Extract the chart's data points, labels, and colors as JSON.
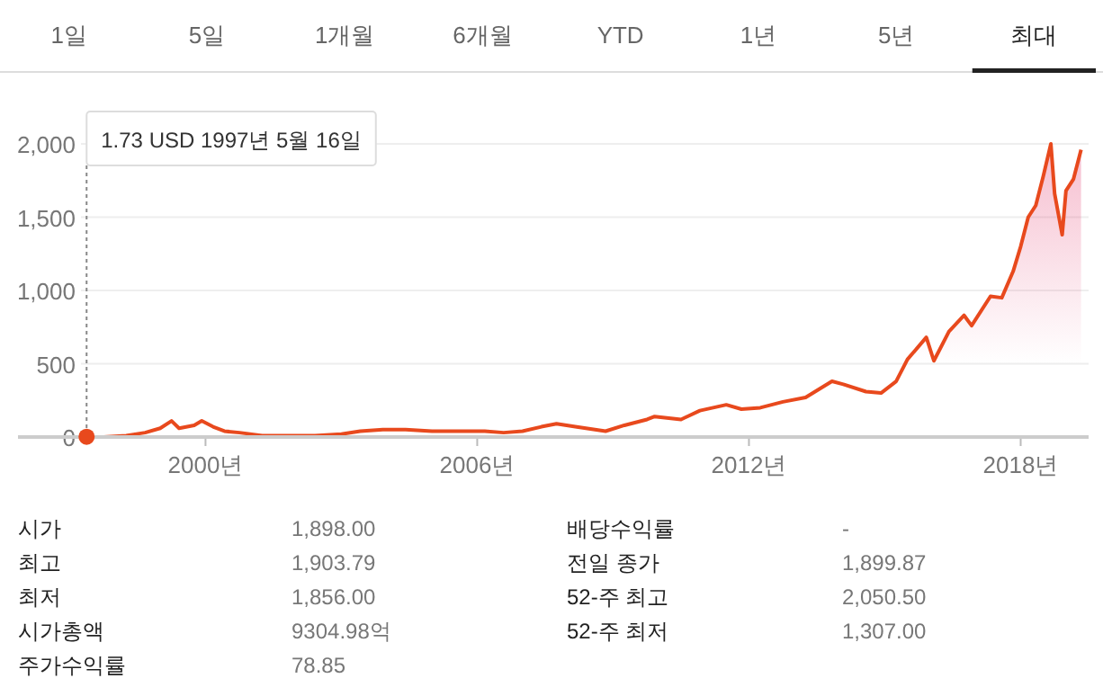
{
  "chart_data": [
    {
      "type": "other",
      "annotations": [
        "1일",
        "5일",
        "1개월",
        "6개월",
        "YTD",
        "1년",
        "5년",
        "최대"
      ]
    },
    {
      "type": "area",
      "xlim": [
        "1997-04",
        "2019-07"
      ],
      "ylim": [
        0,
        2000
      ],
      "xticks": [
        {
          "value": "2000-01",
          "label": "2000년"
        },
        {
          "value": "2006-01",
          "label": "2006년"
        },
        {
          "value": "2012-01",
          "label": "2012년"
        },
        {
          "value": "2018-01",
          "label": "2018년"
        }
      ],
      "yticks": [
        0,
        500,
        {
          "value": 1000,
          "label": "1,000"
        },
        {
          "value": 1500,
          "label": "1,500"
        },
        {
          "value": 2000,
          "label": "2,000"
        }
      ],
      "grid": "y",
      "series": [
        {
          "color": "#e8491d",
          "x": [
            "1997-05",
            "1997-10",
            "1998-04",
            "1998-09",
            "1999-01",
            "1999-04",
            "1999-06",
            "1999-10",
            "1999-12",
            "2000-03",
            "2000-06",
            "2000-10",
            "2001-04",
            "2001-09",
            "2002-06",
            "2003-01",
            "2003-06",
            "2003-12",
            "2004-06",
            "2005-01",
            "2005-08",
            "2006-03",
            "2006-08",
            "2007-01",
            "2007-06",
            "2007-10",
            "2008-03",
            "2008-11",
            "2009-04",
            "2009-10",
            "2009-12",
            "2010-07",
            "2010-12",
            "2011-07",
            "2011-11",
            "2012-04",
            "2012-10",
            "2013-04",
            "2013-11",
            "2014-02",
            "2014-08",
            "2014-12",
            "2015-04",
            "2015-07",
            "2015-12",
            "2016-02",
            "2016-06",
            "2016-10",
            "2016-12",
            "2017-05",
            "2017-08",
            "2017-11",
            "2018-01",
            "2018-03",
            "2018-05",
            "2018-07",
            "2018-09",
            "2018-10",
            "2018-12",
            "2019-01",
            "2019-03",
            "2019-05"
          ],
          "values": [
            0,
            0,
            10,
            30,
            60,
            110,
            60,
            80,
            110,
            70,
            40,
            30,
            10,
            10,
            10,
            20,
            40,
            50,
            50,
            40,
            40,
            40,
            30,
            40,
            70,
            90,
            70,
            40,
            80,
            120,
            140,
            120,
            180,
            220,
            190,
            200,
            240,
            270,
            380,
            360,
            310,
            300,
            380,
            530,
            680,
            520,
            720,
            830,
            760,
            960,
            950,
            1130,
            1300,
            1500,
            1580,
            1780,
            2000,
            1660,
            1380,
            1680,
            1760,
            1960
          ]
        }
      ],
      "annotations": [
        {
          "text": "1.73 USD  1997년 5월 16일",
          "x": "1997-05-16",
          "y": 1.73
        }
      ]
    },
    {
      "type": "other",
      "annotations": [
        "시가",
        "1,898.00",
        "배당수익률",
        "-",
        "최고",
        "1,903.79",
        "전일 종가",
        "1,899.87",
        "최저",
        "1,856.00",
        "52-주 최고",
        "2,050.50",
        "시가총액",
        "9304.98억",
        "52-주 최저",
        "1,307.00",
        "주가수익률",
        "78.85"
      ]
    }
  ]
}
